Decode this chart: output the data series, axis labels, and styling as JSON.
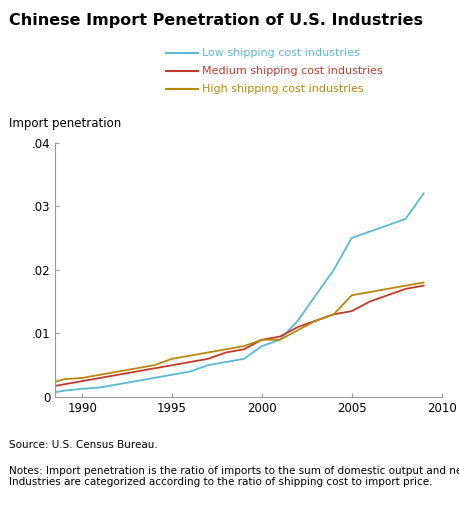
{
  "title": "Chinese Import Penetration of U.S. Industries",
  "ylabel": "Import penetration",
  "source_text": "Source: U.S. Census Bureau.",
  "notes_text": "Notes: Import penetration is the ratio of imports to the sum of domestic output and net imports.\nIndustries are categorized according to the ratio of shipping cost to import price.",
  "xlim": [
    1988.5,
    2010
  ],
  "ylim": [
    0,
    0.04
  ],
  "yticks": [
    0,
    0.01,
    0.02,
    0.03,
    0.04
  ],
  "ytick_labels": [
    "0",
    ".01",
    ".02",
    ".03",
    ".04"
  ],
  "xticks": [
    1990,
    1995,
    2000,
    2005,
    2010
  ],
  "series": {
    "low": {
      "label": "Low shipping cost industries",
      "color": "#5BB8D4",
      "x": [
        1988,
        1989,
        1990,
        1991,
        1992,
        1993,
        1994,
        1995,
        1996,
        1997,
        1998,
        1999,
        2000,
        2001,
        2002,
        2003,
        2004,
        2005,
        2006,
        2007,
        2008,
        2009
      ],
      "y": [
        0.0005,
        0.001,
        0.0013,
        0.0015,
        0.002,
        0.0025,
        0.003,
        0.0035,
        0.004,
        0.005,
        0.0055,
        0.006,
        0.008,
        0.009,
        0.012,
        0.016,
        0.02,
        0.025,
        0.026,
        0.027,
        0.028,
        0.032
      ]
    },
    "medium": {
      "label": "Medium shipping cost industries",
      "color": "#C0392B",
      "x": [
        1988,
        1989,
        1990,
        1991,
        1992,
        1993,
        1994,
        1995,
        1996,
        1997,
        1998,
        1999,
        2000,
        2001,
        2002,
        2003,
        2004,
        2005,
        2006,
        2007,
        2008,
        2009
      ],
      "y": [
        0.0015,
        0.002,
        0.0025,
        0.003,
        0.0035,
        0.004,
        0.0045,
        0.005,
        0.0055,
        0.006,
        0.007,
        0.0075,
        0.009,
        0.0095,
        0.011,
        0.012,
        0.013,
        0.0135,
        0.015,
        0.016,
        0.017,
        0.0175
      ]
    },
    "high": {
      "label": "High shipping cost industries",
      "color": "#B8860B",
      "x": [
        1988,
        1989,
        1990,
        1991,
        1992,
        1993,
        1994,
        1995,
        1996,
        1997,
        1998,
        1999,
        2000,
        2001,
        2002,
        2003,
        2004,
        2005,
        2006,
        2007,
        2008,
        2009
      ],
      "y": [
        0.002,
        0.0028,
        0.003,
        0.0035,
        0.004,
        0.0045,
        0.005,
        0.006,
        0.0065,
        0.007,
        0.0075,
        0.008,
        0.009,
        0.009,
        0.0105,
        0.012,
        0.013,
        0.016,
        0.0165,
        0.017,
        0.0175,
        0.018
      ]
    }
  }
}
